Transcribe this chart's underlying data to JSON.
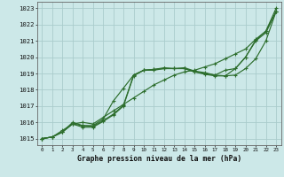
{
  "title": "Graphe pression niveau de la mer (hPa)",
  "bg_color": "#cce8e8",
  "grid_color": "#aacccc",
  "line_color": "#2d6e2d",
  "xlim": [
    -0.5,
    23.5
  ],
  "ylim": [
    1014.6,
    1023.4
  ],
  "yticks": [
    1015,
    1016,
    1017,
    1018,
    1019,
    1020,
    1021,
    1022,
    1023
  ],
  "xticks": [
    0,
    1,
    2,
    3,
    4,
    5,
    6,
    7,
    8,
    9,
    10,
    11,
    12,
    13,
    14,
    15,
    16,
    17,
    18,
    19,
    20,
    21,
    22,
    23
  ],
  "series": [
    [
      1015.0,
      1015.1,
      1015.5,
      1015.9,
      1016.0,
      1015.9,
      1016.3,
      1016.7,
      1017.1,
      1017.5,
      1017.9,
      1018.3,
      1018.6,
      1018.9,
      1019.1,
      1019.2,
      1019.4,
      1019.6,
      1019.9,
      1020.2,
      1020.5,
      1021.1,
      1021.6,
      1023.0
    ],
    [
      1015.0,
      1015.1,
      1015.4,
      1016.0,
      1015.8,
      1015.8,
      1016.2,
      1017.3,
      1018.1,
      1018.9,
      1019.2,
      1019.25,
      1019.35,
      1019.3,
      1019.35,
      1019.15,
      1019.05,
      1018.9,
      1019.2,
      1019.3,
      1020.0,
      1021.05,
      1021.6,
      1022.8
    ],
    [
      1015.0,
      1015.1,
      1015.4,
      1015.9,
      1015.8,
      1015.75,
      1016.1,
      1016.5,
      1017.05,
      1018.9,
      1019.2,
      1019.25,
      1019.3,
      1019.3,
      1019.3,
      1019.1,
      1019.0,
      1018.9,
      1018.85,
      1018.9,
      1019.3,
      1019.9,
      1021.0,
      1022.8
    ],
    [
      1015.0,
      1015.1,
      1015.4,
      1015.9,
      1015.7,
      1015.7,
      1016.05,
      1016.45,
      1017.0,
      1018.85,
      1019.2,
      1019.2,
      1019.3,
      1019.3,
      1019.3,
      1019.1,
      1018.95,
      1018.85,
      1018.85,
      1019.3,
      1020.0,
      1021.0,
      1021.5,
      1022.8
    ]
  ]
}
